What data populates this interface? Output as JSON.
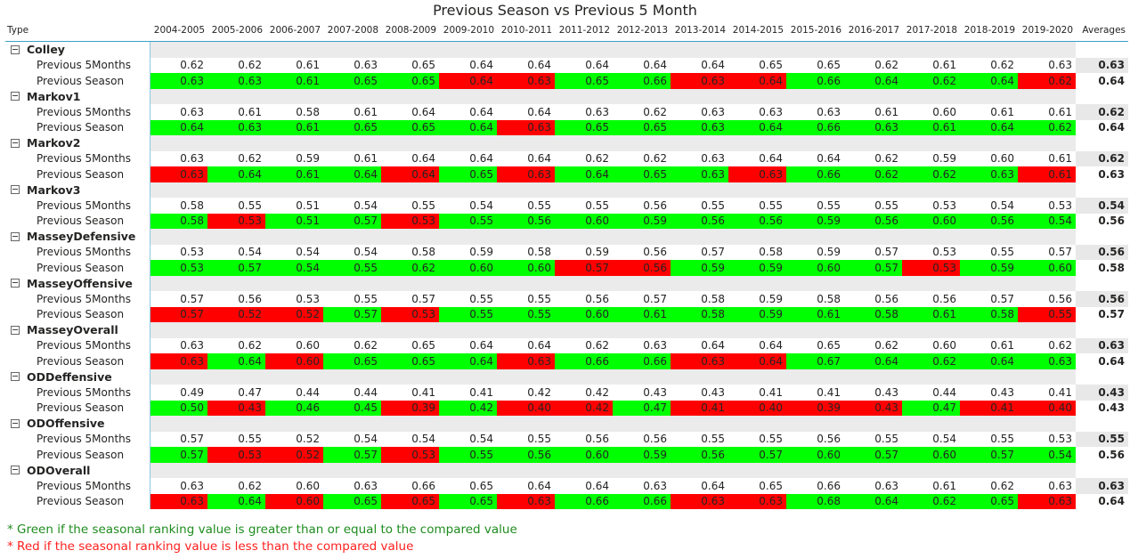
{
  "title": "Previous Season vs Previous 5 Month",
  "columns": {
    "type": "Type",
    "seasons": [
      "2004-2005",
      "2005-2006",
      "2006-2007",
      "2007-2008",
      "2008-2009",
      "2009-2010",
      "2010-2011",
      "2011-2012",
      "2012-2013",
      "2013-2014",
      "2014-2015",
      "2015-2016",
      "2016-2017",
      "2017-2018",
      "2018-2019",
      "2019-2020"
    ],
    "averages": "Averages"
  },
  "row_labels": {
    "p5m": "Previous 5Months",
    "ps": "Previous Season"
  },
  "colors": {
    "green": "#00ff00",
    "red": "#ff0000",
    "header_line": "#3aa0c8"
  },
  "groups": [
    {
      "name": "Colley",
      "p5m": [
        "0.62",
        "0.62",
        "0.61",
        "0.63",
        "0.65",
        "0.64",
        "0.64",
        "0.64",
        "0.64",
        "0.64",
        "0.65",
        "0.65",
        "0.62",
        "0.61",
        "0.62",
        "0.63"
      ],
      "p5m_avg": "0.63",
      "ps": [
        "0.63",
        "0.63",
        "0.61",
        "0.65",
        "0.65",
        "0.64",
        "0.63",
        "0.65",
        "0.66",
        "0.63",
        "0.64",
        "0.66",
        "0.64",
        "0.62",
        "0.64",
        "0.62"
      ],
      "ps_avg": "0.64",
      "ps_colors": [
        "g",
        "g",
        "g",
        "g",
        "g",
        "r",
        "r",
        "g",
        "g",
        "r",
        "r",
        "g",
        "g",
        "g",
        "g",
        "r"
      ]
    },
    {
      "name": "Markov1",
      "p5m": [
        "0.63",
        "0.61",
        "0.58",
        "0.61",
        "0.64",
        "0.64",
        "0.64",
        "0.63",
        "0.62",
        "0.63",
        "0.63",
        "0.63",
        "0.61",
        "0.60",
        "0.61",
        "0.61"
      ],
      "p5m_avg": "0.62",
      "ps": [
        "0.64",
        "0.63",
        "0.61",
        "0.65",
        "0.65",
        "0.64",
        "0.63",
        "0.65",
        "0.65",
        "0.63",
        "0.64",
        "0.66",
        "0.63",
        "0.61",
        "0.64",
        "0.62"
      ],
      "ps_avg": "0.64",
      "ps_colors": [
        "g",
        "g",
        "g",
        "g",
        "g",
        "g",
        "r",
        "g",
        "g",
        "g",
        "g",
        "g",
        "g",
        "g",
        "g",
        "g"
      ]
    },
    {
      "name": "Markov2",
      "p5m": [
        "0.63",
        "0.62",
        "0.59",
        "0.61",
        "0.64",
        "0.64",
        "0.64",
        "0.62",
        "0.62",
        "0.63",
        "0.64",
        "0.64",
        "0.62",
        "0.59",
        "0.60",
        "0.61"
      ],
      "p5m_avg": "0.62",
      "ps": [
        "0.63",
        "0.64",
        "0.61",
        "0.64",
        "0.64",
        "0.65",
        "0.63",
        "0.64",
        "0.65",
        "0.63",
        "0.63",
        "0.66",
        "0.62",
        "0.62",
        "0.63",
        "0.61"
      ],
      "ps_avg": "0.63",
      "ps_colors": [
        "r",
        "g",
        "g",
        "g",
        "r",
        "g",
        "r",
        "g",
        "g",
        "g",
        "r",
        "g",
        "g",
        "g",
        "g",
        "r"
      ]
    },
    {
      "name": "Markov3",
      "p5m": [
        "0.58",
        "0.55",
        "0.51",
        "0.54",
        "0.55",
        "0.54",
        "0.55",
        "0.55",
        "0.56",
        "0.55",
        "0.55",
        "0.55",
        "0.55",
        "0.53",
        "0.54",
        "0.53"
      ],
      "p5m_avg": "0.54",
      "ps": [
        "0.58",
        "0.53",
        "0.51",
        "0.57",
        "0.53",
        "0.55",
        "0.56",
        "0.60",
        "0.59",
        "0.56",
        "0.56",
        "0.59",
        "0.56",
        "0.60",
        "0.56",
        "0.54"
      ],
      "ps_avg": "0.56",
      "ps_colors": [
        "g",
        "r",
        "g",
        "g",
        "r",
        "g",
        "g",
        "g",
        "g",
        "g",
        "g",
        "g",
        "g",
        "g",
        "g",
        "g"
      ]
    },
    {
      "name": "MasseyDefensive",
      "p5m": [
        "0.53",
        "0.54",
        "0.54",
        "0.54",
        "0.58",
        "0.59",
        "0.58",
        "0.59",
        "0.56",
        "0.57",
        "0.58",
        "0.59",
        "0.57",
        "0.53",
        "0.55",
        "0.57"
      ],
      "p5m_avg": "0.56",
      "ps": [
        "0.53",
        "0.57",
        "0.54",
        "0.55",
        "0.62",
        "0.60",
        "0.60",
        "0.57",
        "0.56",
        "0.59",
        "0.59",
        "0.60",
        "0.57",
        "0.53",
        "0.59",
        "0.60"
      ],
      "ps_avg": "0.58",
      "ps_colors": [
        "g",
        "g",
        "g",
        "g",
        "g",
        "g",
        "g",
        "r",
        "r",
        "g",
        "g",
        "g",
        "g",
        "r",
        "g",
        "g"
      ]
    },
    {
      "name": "MasseyOffensive",
      "p5m": [
        "0.57",
        "0.56",
        "0.53",
        "0.55",
        "0.57",
        "0.55",
        "0.55",
        "0.56",
        "0.57",
        "0.58",
        "0.59",
        "0.58",
        "0.56",
        "0.56",
        "0.57",
        "0.56"
      ],
      "p5m_avg": "0.56",
      "ps": [
        "0.57",
        "0.52",
        "0.52",
        "0.57",
        "0.53",
        "0.55",
        "0.55",
        "0.60",
        "0.61",
        "0.58",
        "0.59",
        "0.61",
        "0.58",
        "0.61",
        "0.58",
        "0.55"
      ],
      "ps_avg": "0.57",
      "ps_colors": [
        "r",
        "r",
        "r",
        "g",
        "r",
        "g",
        "g",
        "g",
        "g",
        "g",
        "g",
        "g",
        "g",
        "g",
        "g",
        "r"
      ]
    },
    {
      "name": "MasseyOverall",
      "p5m": [
        "0.63",
        "0.62",
        "0.60",
        "0.62",
        "0.65",
        "0.64",
        "0.64",
        "0.62",
        "0.63",
        "0.64",
        "0.64",
        "0.65",
        "0.62",
        "0.60",
        "0.61",
        "0.62"
      ],
      "p5m_avg": "0.63",
      "ps": [
        "0.63",
        "0.64",
        "0.60",
        "0.65",
        "0.65",
        "0.64",
        "0.63",
        "0.66",
        "0.66",
        "0.63",
        "0.64",
        "0.67",
        "0.64",
        "0.62",
        "0.64",
        "0.63"
      ],
      "ps_avg": "0.64",
      "ps_colors": [
        "r",
        "g",
        "r",
        "g",
        "g",
        "g",
        "r",
        "g",
        "g",
        "r",
        "r",
        "g",
        "g",
        "g",
        "g",
        "g"
      ]
    },
    {
      "name": "ODDeffensive",
      "p5m": [
        "0.49",
        "0.47",
        "0.44",
        "0.44",
        "0.41",
        "0.41",
        "0.42",
        "0.42",
        "0.43",
        "0.43",
        "0.41",
        "0.41",
        "0.43",
        "0.44",
        "0.43",
        "0.41"
      ],
      "p5m_avg": "0.43",
      "ps": [
        "0.50",
        "0.43",
        "0.46",
        "0.45",
        "0.39",
        "0.42",
        "0.40",
        "0.42",
        "0.47",
        "0.41",
        "0.40",
        "0.39",
        "0.43",
        "0.47",
        "0.41",
        "0.40"
      ],
      "ps_avg": "0.43",
      "ps_colors": [
        "g",
        "r",
        "g",
        "g",
        "r",
        "g",
        "r",
        "r",
        "g",
        "r",
        "r",
        "r",
        "r",
        "g",
        "r",
        "r"
      ]
    },
    {
      "name": "ODOffensive",
      "p5m": [
        "0.57",
        "0.55",
        "0.52",
        "0.54",
        "0.54",
        "0.54",
        "0.55",
        "0.56",
        "0.56",
        "0.55",
        "0.55",
        "0.56",
        "0.55",
        "0.54",
        "0.55",
        "0.53"
      ],
      "p5m_avg": "0.55",
      "ps": [
        "0.57",
        "0.53",
        "0.52",
        "0.57",
        "0.53",
        "0.55",
        "0.56",
        "0.60",
        "0.59",
        "0.56",
        "0.57",
        "0.60",
        "0.57",
        "0.60",
        "0.57",
        "0.54"
      ],
      "ps_avg": "0.56",
      "ps_colors": [
        "g",
        "r",
        "r",
        "g",
        "r",
        "g",
        "g",
        "g",
        "g",
        "g",
        "g",
        "g",
        "g",
        "g",
        "g",
        "g"
      ]
    },
    {
      "name": "ODOverall",
      "p5m": [
        "0.63",
        "0.62",
        "0.60",
        "0.63",
        "0.66",
        "0.65",
        "0.64",
        "0.64",
        "0.63",
        "0.64",
        "0.65",
        "0.66",
        "0.63",
        "0.61",
        "0.62",
        "0.63"
      ],
      "p5m_avg": "0.63",
      "ps": [
        "0.63",
        "0.64",
        "0.60",
        "0.65",
        "0.65",
        "0.65",
        "0.63",
        "0.66",
        "0.66",
        "0.63",
        "0.63",
        "0.68",
        "0.64",
        "0.62",
        "0.65",
        "0.63"
      ],
      "ps_avg": "0.64",
      "ps_colors": [
        "r",
        "g",
        "r",
        "g",
        "r",
        "g",
        "r",
        "g",
        "g",
        "r",
        "r",
        "g",
        "g",
        "g",
        "g",
        "r"
      ]
    }
  ],
  "legend": {
    "green": "* Green if the seasonal ranking value is greater than or equal to the compared value",
    "red": "* Red if the seasonal ranking value is less than the compared value"
  }
}
